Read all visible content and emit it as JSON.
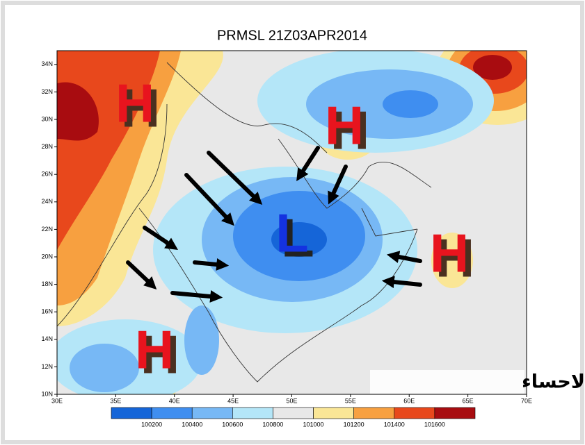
{
  "title": "PRMSL 21Z03APR2014",
  "lat_labels": [
    "34N",
    "32N",
    "30N",
    "28N",
    "26N",
    "24N",
    "22N",
    "20N",
    "18N",
    "16N",
    "14N",
    "12N",
    "10N"
  ],
  "lon_labels": [
    "30E",
    "35E",
    "40E",
    "45E",
    "50E",
    "55E",
    "60E",
    "65E",
    "70E"
  ],
  "colorbar": {
    "labels": [
      "100200",
      "100400",
      "100600",
      "100800",
      "101000",
      "101200",
      "101400",
      "101600"
    ],
    "colors": [
      "#1565d8",
      "#3f8ef0",
      "#77b8f5",
      "#b4e6f8",
      "#e8e8e8",
      "#fae696",
      "#f7a040",
      "#e8481c",
      "#a80c10"
    ]
  },
  "centers": [
    {
      "label": "H"
    },
    {
      "label": "H"
    },
    {
      "label": "L"
    },
    {
      "label": "H"
    },
    {
      "label": "H"
    }
  ],
  "watermark": "براري الاحساء"
}
